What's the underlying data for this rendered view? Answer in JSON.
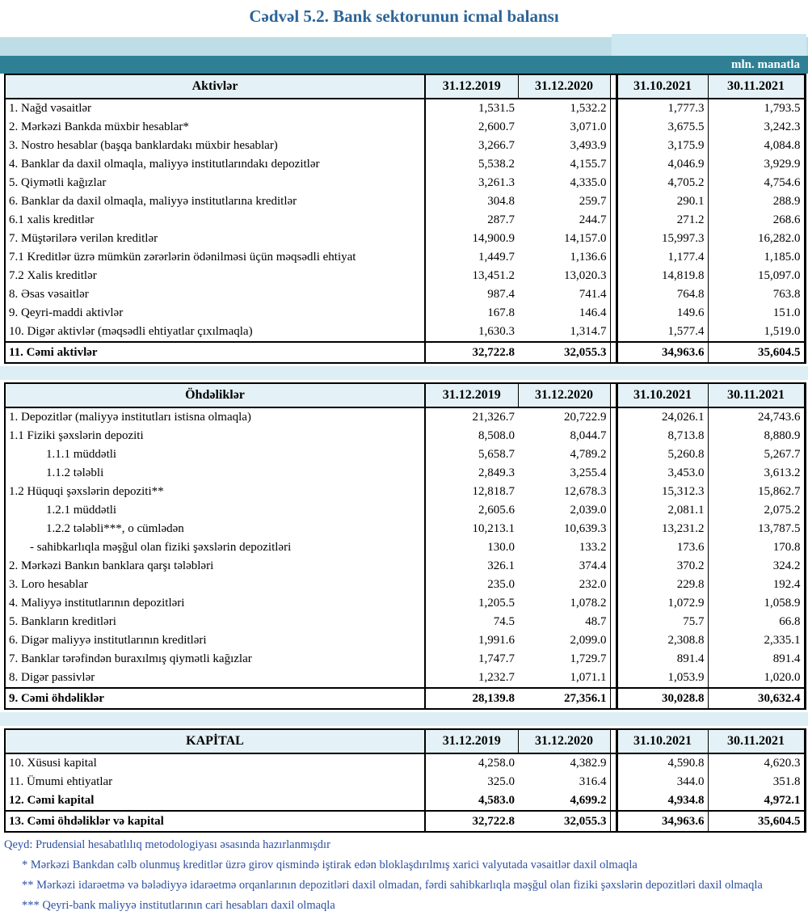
{
  "title": "Cədvəl 5.2. Bank sektorunun icmal balansı",
  "unit_label": "mln. manatla",
  "columns": [
    "31.12.2019",
    "31.12.2020",
    "31.10.2021",
    "30.11.2021"
  ],
  "colors": {
    "title_text": "#2c6599",
    "band_light": "#bedde7",
    "band_raised": "#cde8f0",
    "band_teal": "#2f8095",
    "header_cell_bg": "#e4f1f6",
    "section_strip": "#ddeef4",
    "note_text": "#2d51a3",
    "border": "#000000"
  },
  "sections": [
    {
      "header": "Aktivlər",
      "rows": [
        {
          "label": "1. Nağd vəsaitlər",
          "indent": 0,
          "style": "normal",
          "values": [
            "1,531.5",
            "1,532.2",
            "1,777.3",
            "1,793.5"
          ]
        },
        {
          "label": "2. Mərkəzi Bankda müxbir hesablar*",
          "indent": 0,
          "style": "normal",
          "values": [
            "2,600.7",
            "3,071.0",
            "3,675.5",
            "3,242.3"
          ]
        },
        {
          "label": "3. Nostro hesablar (başqa banklardakı müxbir hesablar)",
          "indent": 0,
          "style": "normal",
          "values": [
            "3,266.7",
            "3,493.9",
            "3,175.9",
            "4,084.8"
          ]
        },
        {
          "label": "4. Banklar da daxil olmaqla, maliyyə institutlarındakı depozitlər",
          "indent": 0,
          "style": "normal",
          "values": [
            "5,538.2",
            "4,155.7",
            "4,046.9",
            "3,929.9"
          ]
        },
        {
          "label": "5. Qiymətli kağızlar",
          "indent": 0,
          "style": "normal",
          "values": [
            "3,261.3",
            "4,335.0",
            "4,705.2",
            "4,754.6"
          ]
        },
        {
          "label": "6. Banklar da daxil olmaqla, maliyyə institutlarına kreditlər",
          "indent": 0,
          "style": "normal",
          "values": [
            "304.8",
            "259.7",
            "290.1",
            "288.9"
          ]
        },
        {
          "label": "6.1 xalis kreditlər",
          "indent": 0,
          "style": "normal",
          "values": [
            "287.7",
            "244.7",
            "271.2",
            "268.6"
          ]
        },
        {
          "label": "7. Müştərilərə verilən kreditlər",
          "indent": 0,
          "style": "normal",
          "values": [
            "14,900.9",
            "14,157.0",
            "15,997.3",
            "16,282.0"
          ]
        },
        {
          "label": "7.1 Kreditlər üzrə mümkün zərərlərin ödənilməsi üçün məqsədli ehtiyat",
          "indent": 0,
          "style": "normal",
          "values": [
            "1,449.7",
            "1,136.6",
            "1,177.4",
            "1,185.0"
          ]
        },
        {
          "label": "7.2 Xalis kreditlər",
          "indent": 0,
          "style": "normal",
          "values": [
            "13,451.2",
            "13,020.3",
            "14,819.8",
            "15,097.0"
          ]
        },
        {
          "label": "8.  Əsas vəsaitlər",
          "indent": 0,
          "style": "normal",
          "values": [
            "987.4",
            "741.4",
            "764.8",
            "763.8"
          ]
        },
        {
          "label": "9. Qeyri-maddi aktivlər",
          "indent": 0,
          "style": "normal",
          "values": [
            "167.8",
            "146.4",
            "149.6",
            "151.0"
          ]
        },
        {
          "label": "10. Digər aktivlər (məqsədli ehtiyatlar çıxılmaqla)",
          "indent": 0,
          "style": "normal",
          "values": [
            "1,630.3",
            "1,314.7",
            "1,577.4",
            "1,519.0"
          ]
        },
        {
          "label": "11. Cəmi aktivlər",
          "indent": 0,
          "style": "total",
          "values": [
            "32,722.8",
            "32,055.3",
            "34,963.6",
            "35,604.5"
          ]
        }
      ]
    },
    {
      "header": "Öhdəliklər",
      "rows": [
        {
          "label": "1. Depozitlər (maliyyə institutları istisna olmaqla)",
          "indent": 0,
          "style": "normal",
          "values": [
            "21,326.7",
            "20,722.9",
            "24,026.1",
            "24,743.6"
          ]
        },
        {
          "label": "1.1 Fiziki şəxslərin depoziti",
          "indent": 0,
          "style": "normal",
          "values": [
            "8,508.0",
            "8,044.7",
            "8,713.8",
            "8,880.9"
          ]
        },
        {
          "label": "1.1.1 müddətli",
          "indent": 2,
          "style": "normal",
          "values": [
            "5,658.7",
            "4,789.2",
            "5,260.8",
            "5,267.7"
          ]
        },
        {
          "label": "1.1.2 tələbli",
          "indent": 2,
          "style": "normal",
          "values": [
            "2,849.3",
            "3,255.4",
            "3,453.0",
            "3,613.2"
          ]
        },
        {
          "label": "1.2 Hüquqi şəxslərin depoziti**",
          "indent": 0,
          "style": "normal",
          "values": [
            "12,818.7",
            "12,678.3",
            "15,312.3",
            "15,862.7"
          ]
        },
        {
          "label": "1.2.1 müddətli",
          "indent": 2,
          "style": "normal",
          "values": [
            "2,605.6",
            "2,039.0",
            "2,081.1",
            "2,075.2"
          ]
        },
        {
          "label": "1.2.2 tələbli***, o cümlədən",
          "indent": 2,
          "style": "normal",
          "values": [
            "10,213.1",
            "10,639.3",
            "13,231.2",
            "13,787.5"
          ]
        },
        {
          "label": "- sahibkarlıqla məşğul olan fiziki şəxslərin depozitləri",
          "indent": 1,
          "style": "normal",
          "values": [
            "130.0",
            "133.2",
            "173.6",
            "170.8"
          ]
        },
        {
          "label": "2. Mərkəzi Bankın banklara qarşı tələbləri",
          "indent": 0,
          "style": "normal",
          "values": [
            "326.1",
            "374.4",
            "370.2",
            "324.2"
          ]
        },
        {
          "label": "3. Loro hesablar",
          "indent": 0,
          "style": "normal",
          "values": [
            "235.0",
            "232.0",
            "229.8",
            "192.4"
          ]
        },
        {
          "label": "4. Maliyyə institutlarının  depozitləri",
          "indent": 0,
          "style": "normal",
          "values": [
            "1,205.5",
            "1,078.2",
            "1,072.9",
            "1,058.9"
          ]
        },
        {
          "label": "5. Bankların kreditləri",
          "indent": 0,
          "style": "normal",
          "values": [
            "74.5",
            "48.7",
            "75.7",
            "66.8"
          ]
        },
        {
          "label": "6. Digər maliyyə institutlarının kreditləri",
          "indent": 0,
          "style": "normal",
          "values": [
            "1,991.6",
            "2,099.0",
            "2,308.8",
            "2,335.1"
          ]
        },
        {
          "label": "7. Banklar tərəfindən buraxılmış qiymətli kağızlar",
          "indent": 0,
          "style": "normal",
          "values": [
            "1,747.7",
            "1,729.7",
            "891.4",
            "891.4"
          ]
        },
        {
          "label": "8. Digər passivlər",
          "indent": 0,
          "style": "normal",
          "values": [
            "1,232.7",
            "1,071.1",
            "1,053.9",
            "1,020.0"
          ]
        },
        {
          "label": "9. Cəmi öhdəliklər",
          "indent": 0,
          "style": "total",
          "values": [
            "28,139.8",
            "27,356.1",
            "30,028.8",
            "30,632.4"
          ]
        }
      ]
    },
    {
      "header": "KAPİTAL",
      "rows": [
        {
          "label": "10. Xüsusi kapital",
          "indent": 0,
          "style": "normal",
          "values": [
            "4,258.0",
            "4,382.9",
            "4,590.8",
            "4,620.3"
          ]
        },
        {
          "label": "11. Ümumi ehtiyatlar",
          "indent": 0,
          "style": "normal",
          "values": [
            "325.0",
            "316.4",
            "344.0",
            "351.8"
          ]
        },
        {
          "label": "12. Cəmi kapital",
          "indent": 0,
          "style": "subtotal",
          "values": [
            "4,583.0",
            "4,699.2",
            "4,934.8",
            "4,972.1"
          ]
        },
        {
          "label": "13. Cəmi öhdəliklər və kapital",
          "indent": 0,
          "style": "total",
          "values": [
            "32,722.8",
            "32,055.3",
            "34,963.6",
            "35,604.5"
          ]
        }
      ]
    }
  ],
  "notes": [
    "Qeyd: Prudensial hesabatlılıq metodologiyası əsasında hazırlanmışdır",
    "* Mərkəzi Bankdan cəlb olunmuş kreditlər üzrə girov qismində iştirak edən bloklaşdırılmış xarici valyutada vəsaitlər daxil olmaqla",
    "** Mərkəzi idarəetmə və bələdiyyə idarəetmə orqanlarının depozitləri daxil olmadan, fərdi sahibkarlıqla məşğul olan fiziki şəxslərin depozitləri daxil olmaqla",
    "*** Qeyri-bank maliyyə institutlarının cari hesabları daxil olmaqla"
  ]
}
